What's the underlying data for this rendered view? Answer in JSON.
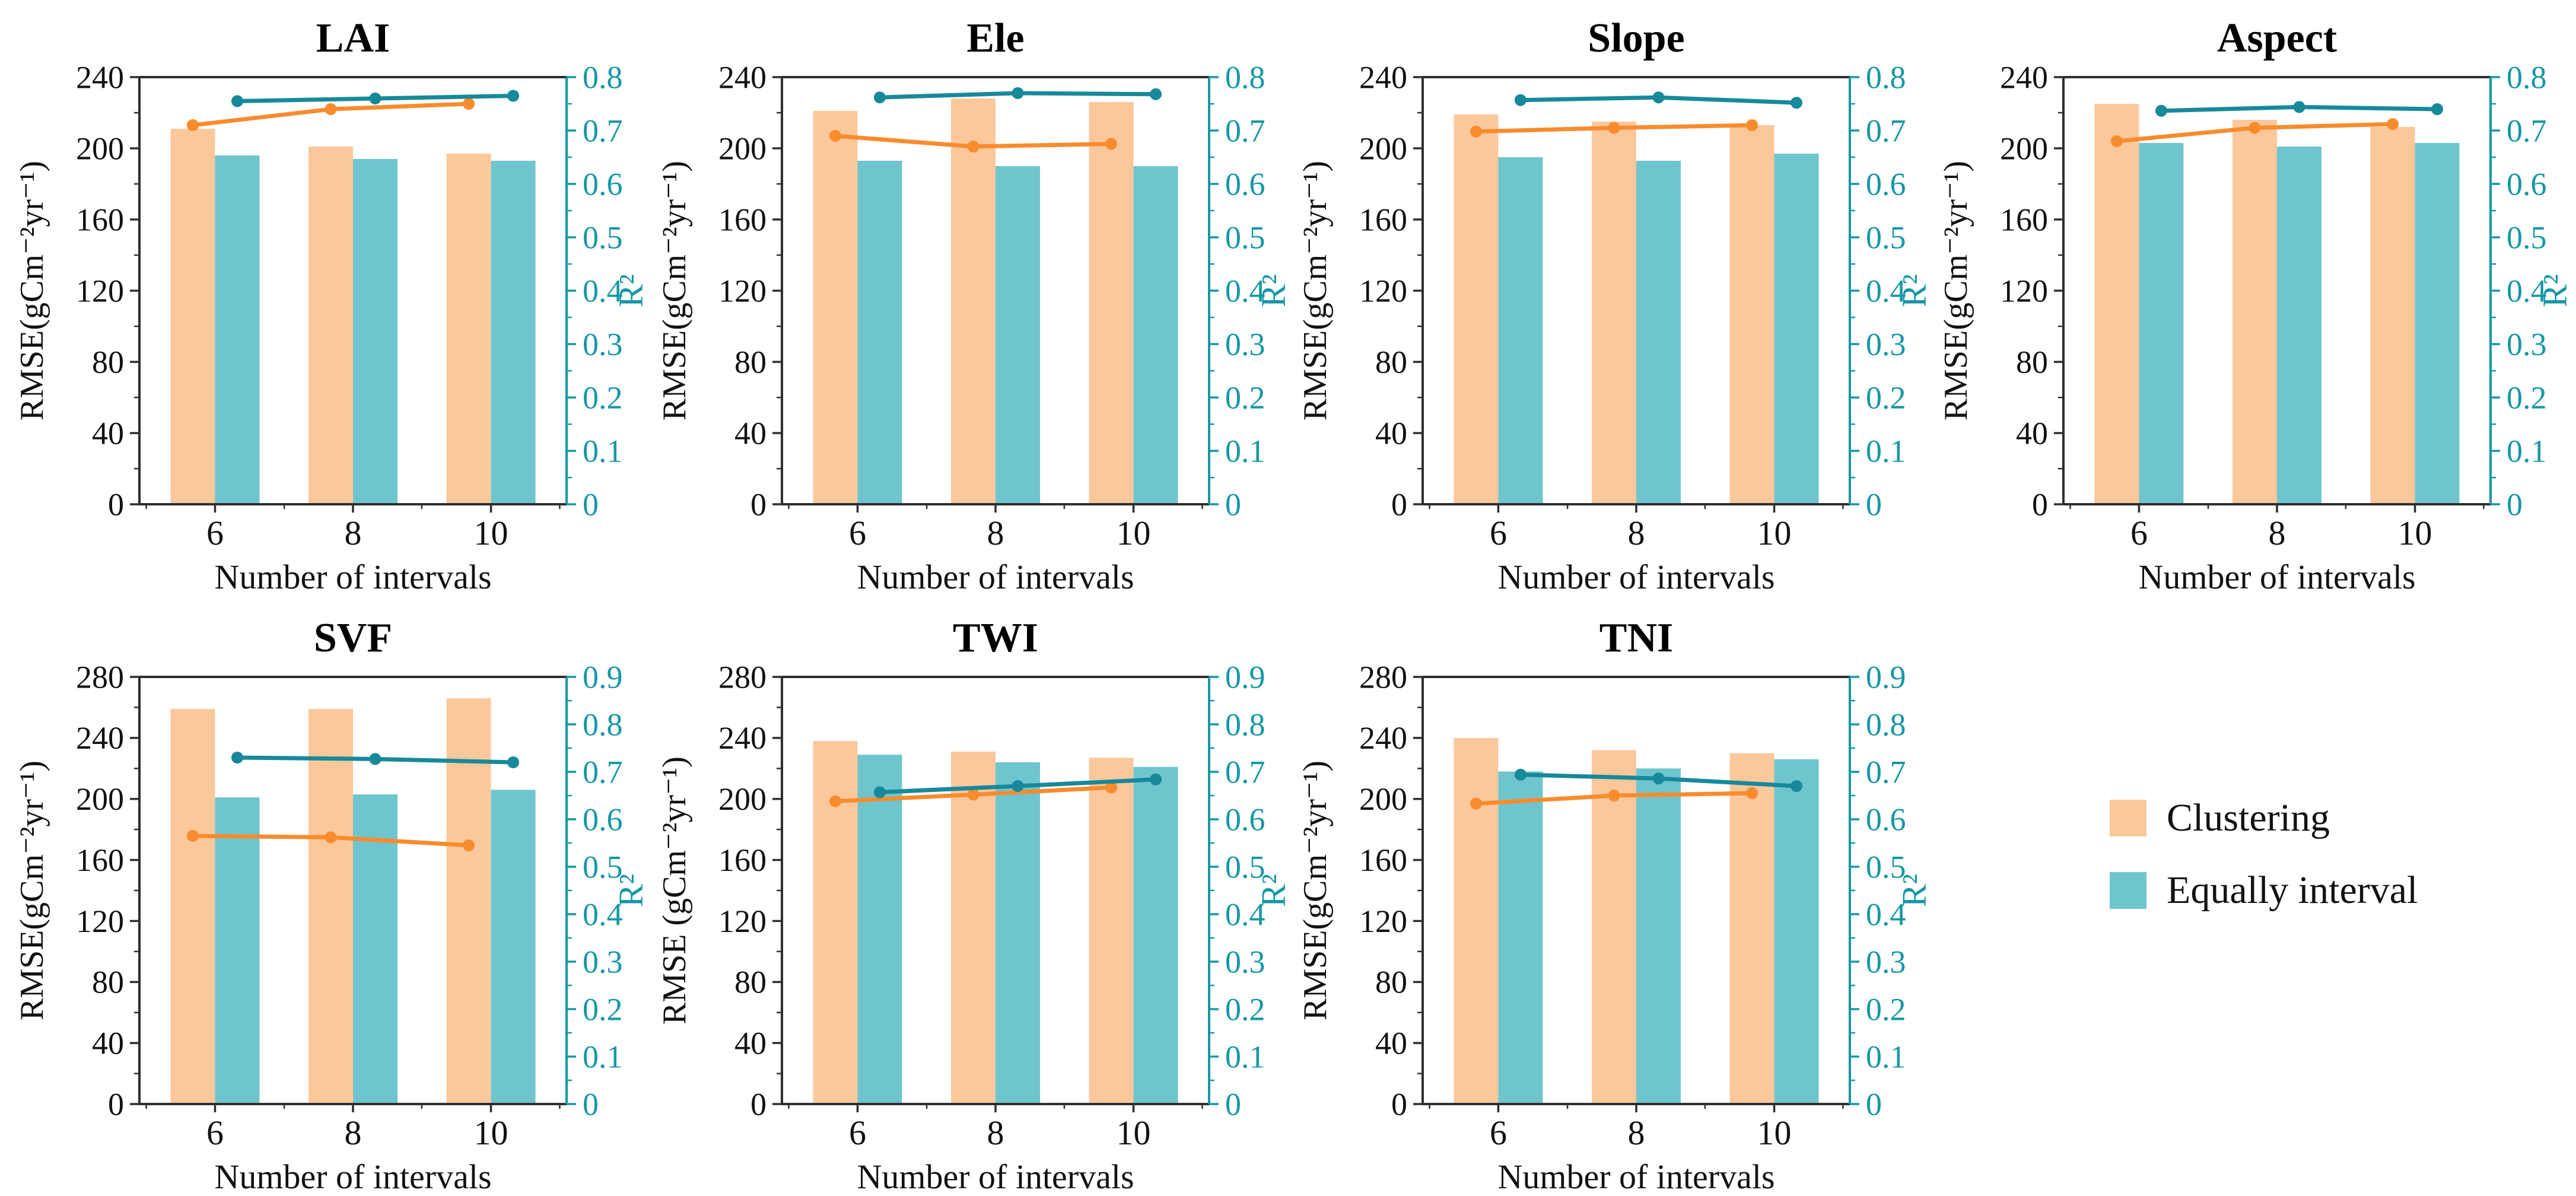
{
  "figure": {
    "background": "#ffffff",
    "description": "Seven bar+line panels comparing RMSE (bars, left axis) and R² (lines, right axis) of Clustering vs Equally interval binning for different terrain variables"
  },
  "colors": {
    "clustering_bar": "#FBC89C",
    "equally_bar": "#6FC5CE",
    "clustering_line": "#F88C2D",
    "equally_line": "#17899A",
    "right_axis": "#1697A6",
    "frame": "#2E2E2E",
    "text": "#111111"
  },
  "legend": {
    "items": [
      {
        "label": "Clustering",
        "color_key": "clustering_bar"
      },
      {
        "label": "Equally interval",
        "color_key": "equally_bar"
      }
    ]
  },
  "chart_data": [
    {
      "id": "lai",
      "type": "bar+line",
      "title": "LAI",
      "xlabel": "Number of intervals",
      "categories": [
        "6",
        "8",
        "10"
      ],
      "left_axis": {
        "label": "RMSE(gCm⁻²yr⁻¹)",
        "min": 0,
        "max": 240,
        "major_step": 40
      },
      "right_axis": {
        "label": "R²",
        "min": 0,
        "max": 0.8,
        "major_step": 0.1
      },
      "bars": [
        {
          "name": "Clustering",
          "values": [
            211,
            201,
            197
          ]
        },
        {
          "name": "Equally interval",
          "values": [
            196,
            194,
            193
          ]
        }
      ],
      "lines": [
        {
          "name": "Clustering",
          "values": [
            0.71,
            0.74,
            0.75
          ]
        },
        {
          "name": "Equally interval",
          "values": [
            0.755,
            0.76,
            0.765
          ]
        }
      ]
    },
    {
      "id": "ele",
      "type": "bar+line",
      "title": "Ele",
      "xlabel": "Number of intervals",
      "categories": [
        "6",
        "8",
        "10"
      ],
      "left_axis": {
        "label": "RMSE(gCm⁻²yr⁻¹)",
        "min": 0,
        "max": 240,
        "major_step": 40
      },
      "right_axis": {
        "label": "R²",
        "min": 0,
        "max": 0.8,
        "major_step": 0.1
      },
      "bars": [
        {
          "name": "Clustering",
          "values": [
            221,
            228,
            226
          ]
        },
        {
          "name": "Equally interval",
          "values": [
            193,
            190,
            190
          ]
        }
      ],
      "lines": [
        {
          "name": "Clustering",
          "values": [
            0.69,
            0.67,
            0.675
          ]
        },
        {
          "name": "Equally interval",
          "values": [
            0.762,
            0.77,
            0.768
          ]
        }
      ]
    },
    {
      "id": "slope",
      "type": "bar+line",
      "title": "Slope",
      "xlabel": "Number of intervals",
      "categories": [
        "6",
        "8",
        "10"
      ],
      "left_axis": {
        "label": "RMSE(gCm⁻²yr⁻¹)",
        "min": 0,
        "max": 240,
        "major_step": 40
      },
      "right_axis": {
        "label": "R²",
        "min": 0,
        "max": 0.8,
        "major_step": 0.1
      },
      "bars": [
        {
          "name": "Clustering",
          "values": [
            219,
            215,
            213
          ]
        },
        {
          "name": "Equally interval",
          "values": [
            195,
            193,
            197
          ]
        }
      ],
      "lines": [
        {
          "name": "Clustering",
          "values": [
            0.698,
            0.705,
            0.71
          ]
        },
        {
          "name": "Equally interval",
          "values": [
            0.757,
            0.762,
            0.752
          ]
        }
      ]
    },
    {
      "id": "aspect",
      "type": "bar+line",
      "title": "Aspect",
      "xlabel": "Number of intervals",
      "categories": [
        "6",
        "8",
        "10"
      ],
      "left_axis": {
        "label": "RMSE(gCm⁻²yr⁻¹)",
        "min": 0,
        "max": 240,
        "major_step": 40
      },
      "right_axis": {
        "label": "R²",
        "min": 0,
        "max": 0.8,
        "major_step": 0.1
      },
      "bars": [
        {
          "name": "Clustering",
          "values": [
            225,
            216,
            212
          ]
        },
        {
          "name": "Equally interval",
          "values": [
            203,
            201,
            203
          ]
        }
      ],
      "lines": [
        {
          "name": "Clustering",
          "values": [
            0.68,
            0.705,
            0.712
          ]
        },
        {
          "name": "Equally interval",
          "values": [
            0.737,
            0.744,
            0.74
          ]
        }
      ]
    },
    {
      "id": "svf",
      "type": "bar+line",
      "title": "SVF",
      "xlabel": "Number of intervals",
      "categories": [
        "6",
        "8",
        "10"
      ],
      "left_axis": {
        "label": "RMSE(gCm⁻²yr⁻¹)",
        "min": 0,
        "max": 280,
        "major_step": 40
      },
      "right_axis": {
        "label": "R²",
        "min": 0,
        "max": 0.9,
        "major_step": 0.1
      },
      "bars": [
        {
          "name": "Clustering",
          "values": [
            259,
            259,
            266
          ]
        },
        {
          "name": "Equally interval",
          "values": [
            201,
            203,
            206
          ]
        }
      ],
      "lines": [
        {
          "name": "Clustering",
          "values": [
            0.565,
            0.562,
            0.545
          ]
        },
        {
          "name": "Equally interval",
          "values": [
            0.73,
            0.727,
            0.72
          ]
        }
      ]
    },
    {
      "id": "twi",
      "type": "bar+line",
      "title": "TWI",
      "xlabel": "Number of intervals",
      "categories": [
        "6",
        "8",
        "10"
      ],
      "left_axis": {
        "label": "RMSE (gCm⁻²yr⁻¹)",
        "min": 0,
        "max": 280,
        "major_step": 40
      },
      "right_axis": {
        "label": "R²",
        "min": 0,
        "max": 0.9,
        "major_step": 0.1
      },
      "bars": [
        {
          "name": "Clustering",
          "values": [
            238,
            231,
            227
          ]
        },
        {
          "name": "Equally interval",
          "values": [
            229,
            224,
            221
          ]
        }
      ],
      "lines": [
        {
          "name": "Clustering",
          "values": [
            0.638,
            0.652,
            0.667
          ]
        },
        {
          "name": "Equally interval",
          "values": [
            0.657,
            0.67,
            0.684
          ]
        }
      ]
    },
    {
      "id": "tni",
      "type": "bar+line",
      "title": "TNI",
      "xlabel": "Number of intervals",
      "categories": [
        "6",
        "8",
        "10"
      ],
      "left_axis": {
        "label": "RMSE(gCm⁻²yr⁻¹)",
        "min": 0,
        "max": 280,
        "major_step": 40
      },
      "right_axis": {
        "label": "R²",
        "min": 0,
        "max": 0.9,
        "major_step": 0.1
      },
      "bars": [
        {
          "name": "Clustering",
          "values": [
            240,
            232,
            230
          ]
        },
        {
          "name": "Equally interval",
          "values": [
            218,
            220,
            226
          ]
        }
      ],
      "lines": [
        {
          "name": "Clustering",
          "values": [
            0.633,
            0.65,
            0.655
          ]
        },
        {
          "name": "Equally interval",
          "values": [
            0.694,
            0.686,
            0.67
          ]
        }
      ]
    }
  ]
}
